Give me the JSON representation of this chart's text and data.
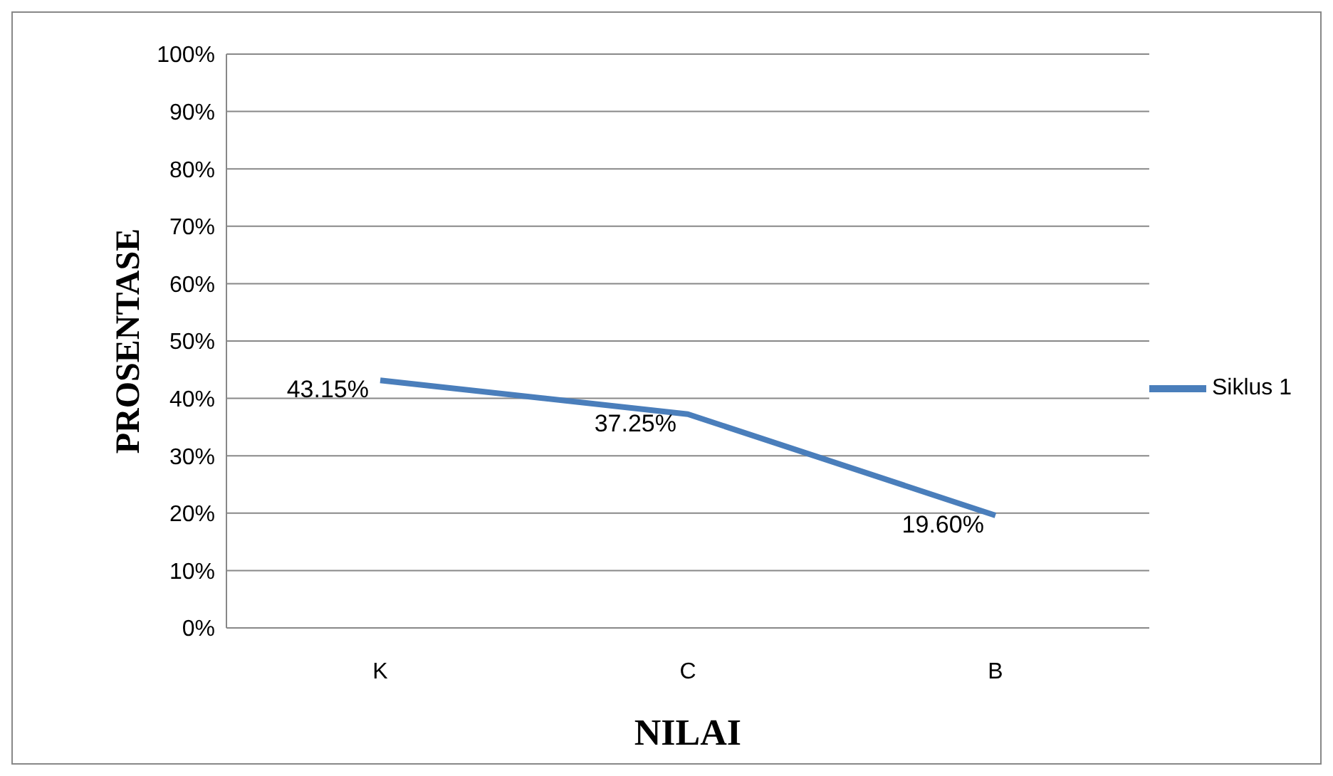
{
  "chart_data": {
    "type": "line",
    "xlabel": "NILAI",
    "ylabel": "PROSENTASE",
    "categories": [
      "K",
      "C",
      "B"
    ],
    "series": [
      {
        "name": "Siklus 1",
        "color": "#4a7ebb",
        "values": [
          43.15,
          37.25,
          19.6
        ],
        "value_labels": [
          "43.15%",
          "37.25%",
          "19.60%"
        ]
      }
    ],
    "ylim": [
      0,
      100
    ],
    "yticks": [
      {
        "value": 0,
        "label": "0%"
      },
      {
        "value": 10,
        "label": "10%"
      },
      {
        "value": 20,
        "label": "20%"
      },
      {
        "value": 30,
        "label": "30%"
      },
      {
        "value": 40,
        "label": "40%"
      },
      {
        "value": 50,
        "label": "50%"
      },
      {
        "value": 60,
        "label": "60%"
      },
      {
        "value": 70,
        "label": "70%"
      },
      {
        "value": 80,
        "label": "80%"
      },
      {
        "value": 90,
        "label": "90%"
      },
      {
        "value": 100,
        "label": "100%"
      }
    ],
    "grid": "y",
    "legend": "right",
    "marker": "none",
    "line_style": "solid"
  }
}
